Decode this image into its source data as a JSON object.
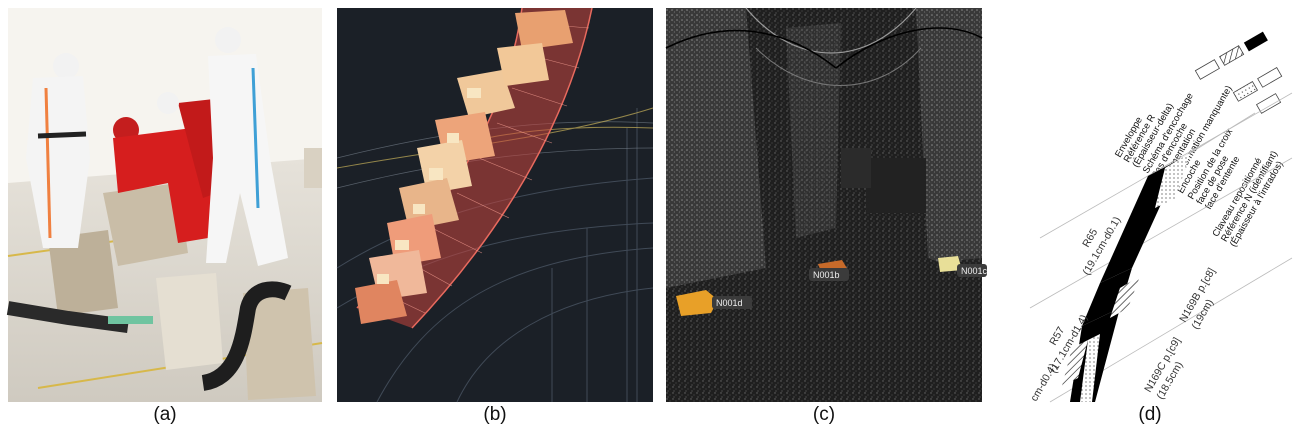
{
  "captions": {
    "a": "(a)",
    "b": "(b)",
    "c": "(c)",
    "d": "(d)"
  },
  "panel_c": {
    "tags": [
      "N001d",
      "N001b",
      "N001c"
    ]
  },
  "panel_d": {
    "legend": [
      "Enveloppe",
      "Référence R",
      "(Épaisseur-delta)",
      "Schéma d'encochage",
      "Pas d'encoche",
      "Fragmentation",
      "(ou information manquante)",
      "Encoche",
      "Position de la croix",
      "face de pose",
      "face d'entente",
      "Claveau repositionné",
      "Référence N (identifiant)",
      "(Épaisseur à l'intrados)"
    ],
    "refs": {
      "r65": "R65",
      "r65_sub": "(19.1cm-d0.1)",
      "r57": "R57",
      "r57_sub": "(17.1cm-d1.4)",
      "partial": "cm-d0.4)",
      "n169b": "N169B p.[c8]",
      "n169b_sub": "(19cm)",
      "n169c": "N169C p.[c9]",
      "n169c_sub": "(18.5cm)"
    }
  }
}
